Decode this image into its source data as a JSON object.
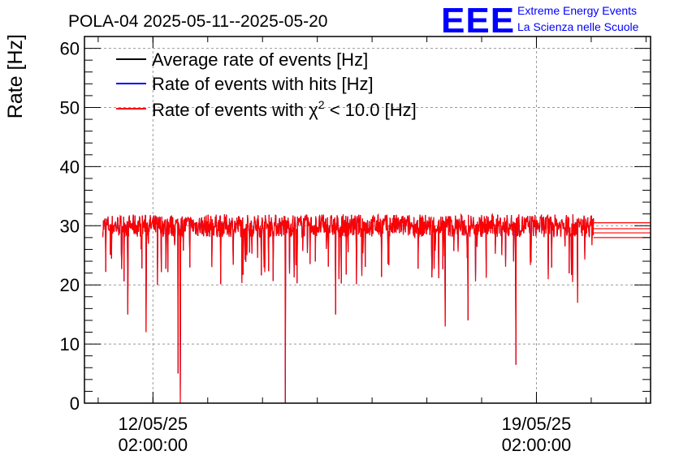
{
  "chart_data": {
    "type": "line",
    "title": "POLA-04 2025-05-11--2025-05-20",
    "ylabel": "Rate [Hz]",
    "xlabel": "",
    "ylim": [
      0,
      62
    ],
    "yticks": [
      0,
      10,
      20,
      30,
      40,
      50,
      60
    ],
    "xlim": [
      "2025-05-10 20:00",
      "2025-05-21 04:00"
    ],
    "xticks": [
      {
        "date": "2025-05-12 02:00",
        "line1": "12/05/25",
        "line2": "02:00:00"
      },
      {
        "date": "2025-05-19 02:00",
        "line1": "19/05/25",
        "line2": "02:00:00"
      }
    ],
    "grid": true,
    "legend_position": "top-left",
    "series": [
      {
        "name": "Average rate of events [Hz]",
        "color": "#000000",
        "baseline": 30,
        "noise": 1.2
      },
      {
        "name": "Rate of events with hits [Hz]",
        "color": "#0000ff",
        "baseline": 30,
        "noise": 1.2
      },
      {
        "name_prefix": "Rate of events with ",
        "name_symbol": "χ",
        "name_superscript": "2",
        "name_suffix": " < 10.0 [Hz]",
        "color": "#ff0000",
        "baseline": 30,
        "noise": 1.2
      }
    ],
    "x_start": "2025-05-11 04:00",
    "x_end": "2025-05-20 03:00",
    "dips": [
      {
        "date": "2025-05-11 15:00",
        "value": 15
      },
      {
        "date": "2025-05-11 23:00",
        "value": 12
      },
      {
        "date": "2025-05-12 04:00",
        "value": 20
      },
      {
        "date": "2025-05-12 13:00",
        "value": 5
      },
      {
        "date": "2025-05-12 14:00",
        "value": 0
      },
      {
        "date": "2025-05-14 12:00",
        "value": 0
      },
      {
        "date": "2025-05-15 10:00",
        "value": 15
      },
      {
        "date": "2025-05-17 10:00",
        "value": 13
      },
      {
        "date": "2025-05-17 20:00",
        "value": 14
      },
      {
        "date": "2025-05-18 17:00",
        "value": 6.5
      },
      {
        "date": "2025-05-19 20:00",
        "value": 17
      }
    ]
  },
  "logo": {
    "mark": "EEE",
    "line1": "Extreme Energy Events",
    "line2": "La Scienza nelle Scuole",
    "color": "#0000ff"
  }
}
